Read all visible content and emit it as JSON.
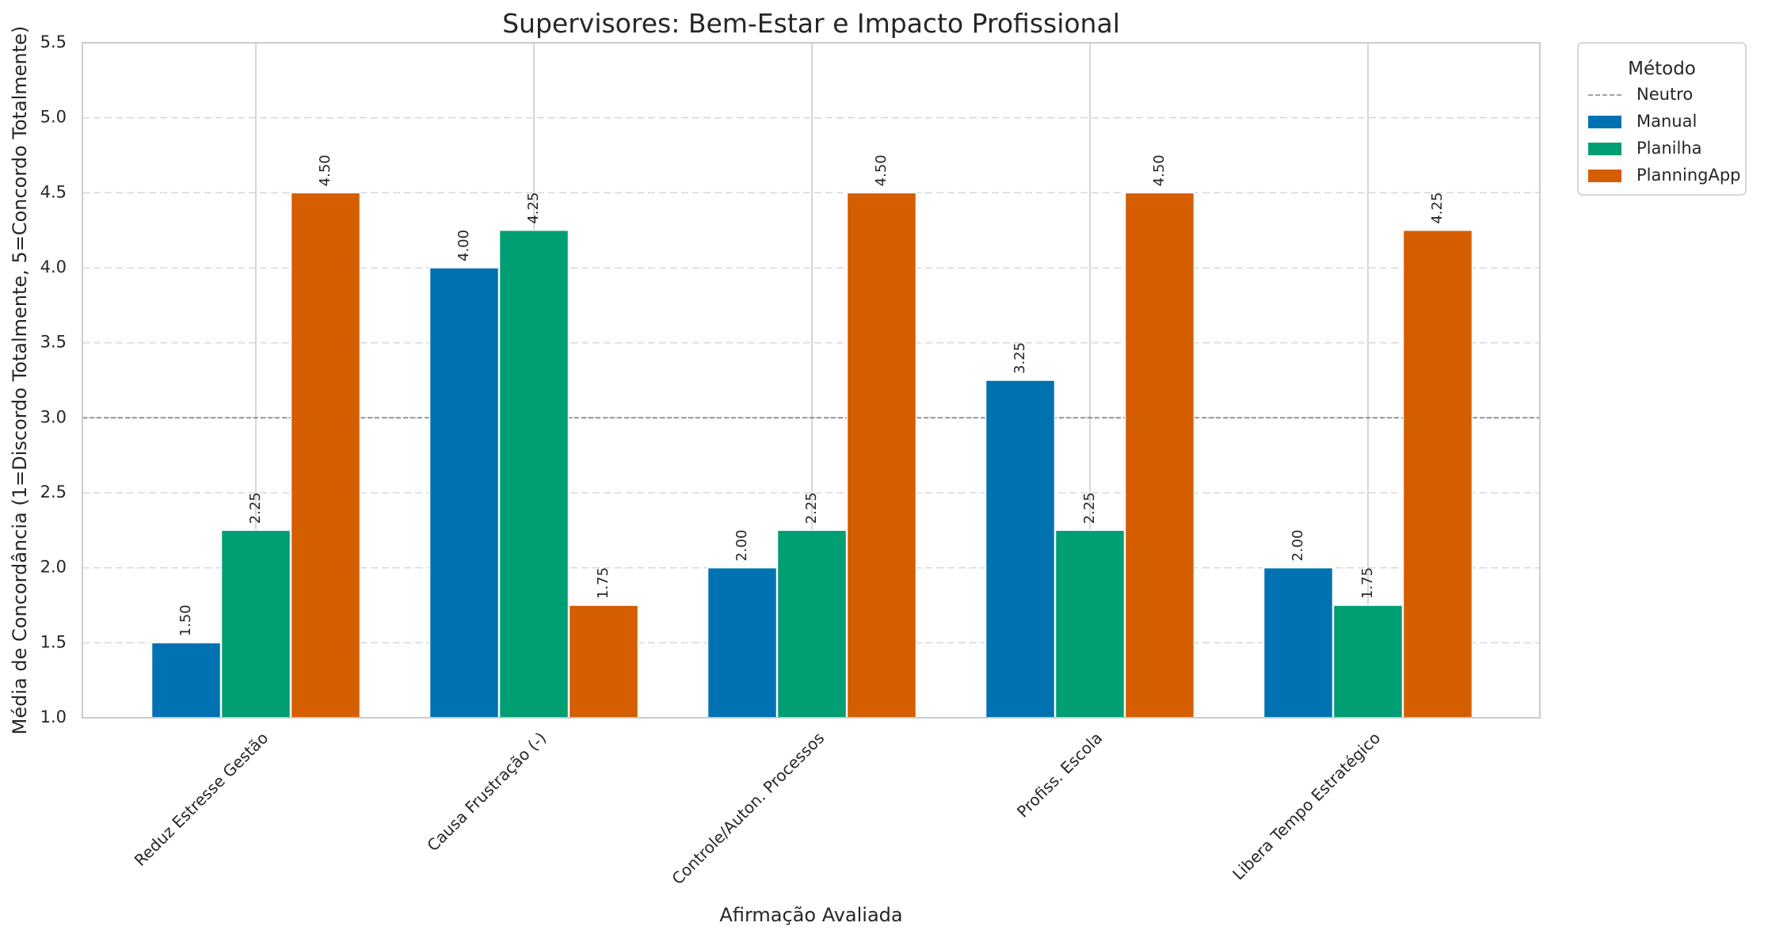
{
  "chart_data": {
    "type": "bar",
    "title": "Supervisores: Bem-Estar e Impacto Profissional",
    "xlabel": "Afirmação Avaliada",
    "ylabel": "Média de Concordância (1=Discordo Totalmente, 5=Concordo Totalmente)",
    "ylim": [
      1.0,
      5.5
    ],
    "yticks": [
      "1.0",
      "1.5",
      "2.0",
      "2.5",
      "3.0",
      "3.5",
      "4.0",
      "4.5",
      "5.0",
      "5.5"
    ],
    "categories": [
      "Reduz Estresse Gestão",
      "Causa Frustração (-)",
      "Controle/Auton. Processos",
      "Profiss. Escola",
      "Libera Tempo Estratégico"
    ],
    "series": [
      {
        "name": "Manual",
        "color": "#0072b2",
        "values": [
          1.5,
          4.0,
          2.0,
          3.25,
          2.0
        ],
        "labels": [
          "1.50",
          "4.00",
          "2.00",
          "3.25",
          "2.00"
        ]
      },
      {
        "name": "Planilha",
        "color": "#009e73",
        "values": [
          2.25,
          4.25,
          2.25,
          2.25,
          1.75
        ],
        "labels": [
          "2.25",
          "4.25",
          "2.25",
          "2.25",
          "1.75"
        ]
      },
      {
        "name": "PlanningApp",
        "color": "#d55e00",
        "values": [
          4.5,
          1.75,
          4.5,
          4.5,
          4.25
        ],
        "labels": [
          "4.50",
          "1.75",
          "4.50",
          "4.50",
          "4.25"
        ]
      }
    ],
    "reference_line": {
      "name": "Neutro",
      "value": 3.0,
      "color": "#808080",
      "style": "dashed"
    },
    "legend": {
      "title": "Método",
      "placement": "outside-top-right"
    },
    "grid": {
      "y": true,
      "y_style": "dashed",
      "x": true,
      "x_style": "solid"
    }
  }
}
